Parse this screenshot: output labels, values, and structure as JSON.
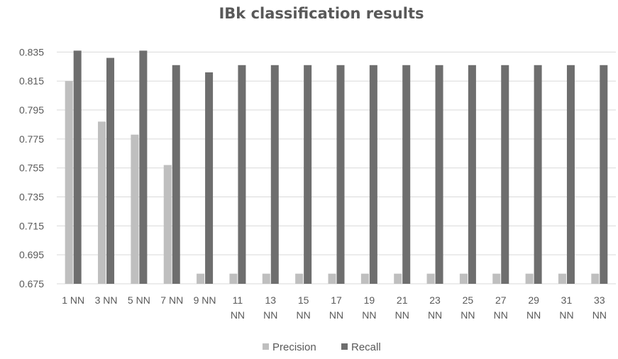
{
  "chart_data": {
    "type": "bar",
    "title": "IBk classification results",
    "xlabel": "",
    "ylabel": "",
    "categories": [
      "1 NN",
      "3 NN",
      "5 NN",
      "7 NN",
      "9 NN",
      "11 NN",
      "13 NN",
      "15 NN",
      "17 NN",
      "19 NN",
      "21 NN",
      "23 NN",
      "25 NN",
      "27 NN",
      "29 NN",
      "31 NN",
      "33 NN"
    ],
    "category_lines": [
      [
        "1 NN"
      ],
      [
        "3 NN"
      ],
      [
        "5 NN"
      ],
      [
        "7 NN"
      ],
      [
        "9 NN"
      ],
      [
        "11",
        "NN"
      ],
      [
        "13",
        "NN"
      ],
      [
        "15",
        "NN"
      ],
      [
        "17",
        "NN"
      ],
      [
        "19",
        "NN"
      ],
      [
        "21",
        "NN"
      ],
      [
        "23",
        "NN"
      ],
      [
        "25",
        "NN"
      ],
      [
        "27",
        "NN"
      ],
      [
        "29",
        "NN"
      ],
      [
        "31",
        "NN"
      ],
      [
        "33",
        "NN"
      ]
    ],
    "series": [
      {
        "name": "Precision",
        "color": "#bfbfbf",
        "values": [
          0.815,
          0.787,
          0.778,
          0.757,
          0.682,
          0.682,
          0.682,
          0.682,
          0.682,
          0.682,
          0.682,
          0.682,
          0.682,
          0.682,
          0.682,
          0.682,
          0.682
        ]
      },
      {
        "name": "Recall",
        "color": "#6e6e6e",
        "values": [
          0.836,
          0.831,
          0.836,
          0.826,
          0.821,
          0.826,
          0.826,
          0.826,
          0.826,
          0.826,
          0.826,
          0.826,
          0.826,
          0.826,
          0.826,
          0.826,
          0.826
        ]
      }
    ],
    "ylim": [
      0.675,
      0.845
    ],
    "yticks": [
      "0.675",
      "0.695",
      "0.715",
      "0.735",
      "0.755",
      "0.775",
      "0.795",
      "0.815",
      "0.835"
    ],
    "grid": true,
    "gridline_color": "#d9d9d9",
    "legend_position": "bottom"
  }
}
